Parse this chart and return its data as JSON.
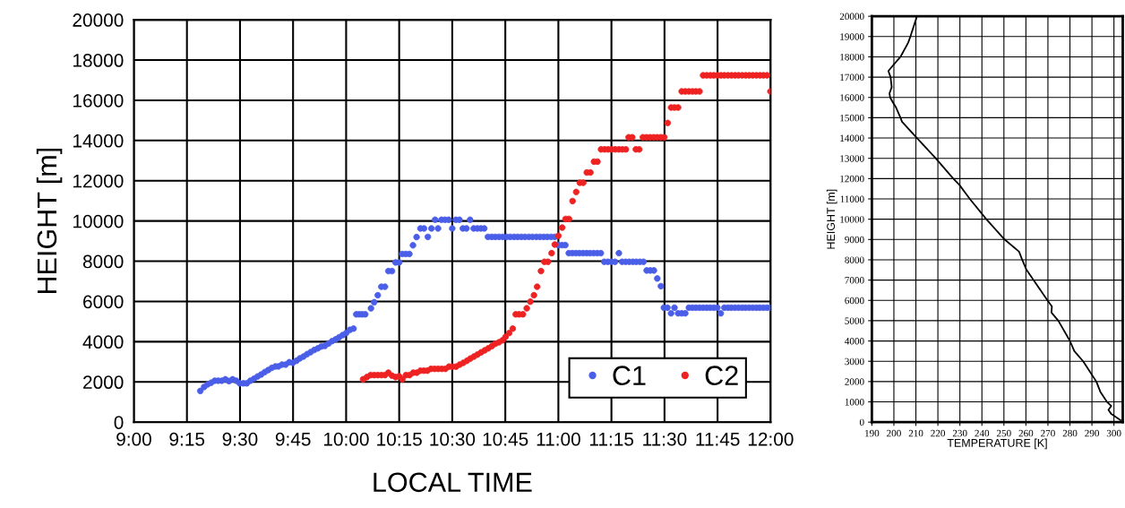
{
  "chart_data": [
    {
      "type": "scatter",
      "xlabel": "LOCAL TIME",
      "ylabel": "HEIGHT [m]",
      "xlim": [
        9,
        12
      ],
      "xticks": [
        {
          "value": 9,
          "label": "9:00"
        },
        {
          "value": 9.25,
          "label": "9:15"
        },
        {
          "value": 9.5,
          "label": "9:30"
        },
        {
          "value": 9.75,
          "label": "9:45"
        },
        {
          "value": 10,
          "label": "10:00"
        },
        {
          "value": 10.25,
          "label": "10:15"
        },
        {
          "value": 10.5,
          "label": "10:30"
        },
        {
          "value": 10.75,
          "label": "10:45"
        },
        {
          "value": 11,
          "label": "11:00"
        },
        {
          "value": 11.25,
          "label": "11:15"
        },
        {
          "value": 11.5,
          "label": "11:30"
        },
        {
          "value": 11.75,
          "label": "11:45"
        },
        {
          "value": 12,
          "label": "12:00"
        }
      ],
      "ylim": [
        0,
        20000
      ],
      "yticks": [
        0,
        2000,
        4000,
        6000,
        8000,
        10000,
        12000,
        14000,
        16000,
        18000,
        20000
      ],
      "grid": true,
      "legend": "bottom right",
      "marker": "circle",
      "series": [
        {
          "name": "C1",
          "color": "#4a5ee8",
          "x": [
            9.313,
            9.331,
            9.348,
            9.364,
            9.381,
            9.397,
            9.414,
            9.431,
            9.448,
            9.465,
            9.482,
            9.499,
            9.516,
            9.532,
            9.549,
            9.566,
            9.583,
            9.6,
            9.617,
            9.633,
            9.65,
            9.667,
            9.681,
            9.698,
            9.715,
            9.732,
            9.749,
            9.766,
            9.782,
            9.799,
            9.816,
            9.833,
            9.85,
            9.867,
            9.883,
            9.9,
            9.917,
            9.934,
            9.951,
            9.967,
            9.984,
            10.001,
            10.018,
            10.035,
            10.048,
            10.062,
            10.076,
            10.09,
            10.117,
            10.132,
            10.149,
            10.166,
            10.183,
            10.199,
            10.216,
            10.233,
            10.25,
            10.264,
            10.281,
            10.298,
            10.315,
            10.332,
            10.35,
            10.367,
            10.385,
            10.402,
            10.419,
            10.433,
            10.449,
            10.466,
            10.483,
            10.5,
            10.517,
            10.534,
            10.55,
            10.567,
            10.584,
            10.601,
            10.618,
            10.635,
            10.651,
            10.668,
            10.686,
            10.703,
            10.721,
            10.738,
            10.756,
            10.773,
            10.791,
            10.808,
            10.826,
            10.843,
            10.861,
            10.878,
            10.896,
            10.913,
            10.931,
            10.948,
            10.966,
            10.983,
            11.0,
            11.017,
            11.033,
            11.049,
            11.066,
            11.083,
            11.099,
            11.116,
            11.133,
            11.149,
            11.166,
            11.183,
            11.2,
            11.216,
            11.233,
            11.25,
            11.267,
            11.285,
            11.3,
            11.317,
            11.334,
            11.351,
            11.367,
            11.384,
            11.401,
            11.416,
            11.433,
            11.45,
            11.466,
            11.483,
            11.497,
            11.514,
            11.531,
            11.547,
            11.564,
            11.581,
            11.598,
            11.615,
            11.632,
            11.648,
            11.665,
            11.682,
            11.699,
            11.715,
            11.732,
            11.749,
            11.765,
            11.782,
            11.799,
            11.815,
            11.832,
            11.849,
            11.866,
            11.882,
            11.899,
            11.916,
            11.933,
            11.949,
            11.966,
            11.983,
            11.999
          ],
          "values": [
            1550,
            1750,
            1880,
            1960,
            2060,
            2060,
            2060,
            2130,
            2040,
            2130,
            2060,
            1930,
            1930,
            1930,
            2060,
            2160,
            2270,
            2370,
            2490,
            2590,
            2700,
            2770,
            2770,
            2860,
            2860,
            2980,
            2950,
            3050,
            3170,
            3260,
            3380,
            3480,
            3590,
            3670,
            3760,
            3790,
            3910,
            4030,
            4120,
            4220,
            4330,
            4440,
            4590,
            4650,
            5360,
            5360,
            5360,
            5360,
            5660,
            5960,
            6310,
            6730,
            6730,
            7510,
            7510,
            7940,
            7940,
            8360,
            8360,
            8360,
            8790,
            9200,
            9630,
            9630,
            9210,
            9630,
            10060,
            9630,
            10060,
            10060,
            10060,
            9630,
            10060,
            10060,
            9630,
            9630,
            10060,
            9630,
            9630,
            9630,
            9630,
            9210,
            9210,
            9210,
            9210,
            9210,
            9210,
            9210,
            9210,
            9210,
            9210,
            9210,
            9210,
            9210,
            9210,
            9210,
            9210,
            9210,
            9210,
            9210,
            8800,
            8800,
            8800,
            8400,
            8400,
            8400,
            8400,
            8400,
            8400,
            8400,
            8400,
            8400,
            8400,
            7970,
            7970,
            7970,
            7970,
            8400,
            7970,
            7970,
            7970,
            7970,
            7970,
            7970,
            7970,
            7540,
            7540,
            7540,
            7140,
            6760,
            5690,
            5690,
            5410,
            5690,
            5410,
            5410,
            5410,
            5690,
            5690,
            5690,
            5690,
            5690,
            5690,
            5690,
            5690,
            5690,
            5410,
            5690,
            5690,
            5690,
            5690,
            5690,
            5690,
            5690,
            5690,
            5690,
            5690,
            5690,
            5690,
            5690,
            5690
          ]
        },
        {
          "name": "C2",
          "color": "#ee2222",
          "x": [
            10.08,
            10.098,
            10.115,
            10.132,
            10.149,
            10.166,
            10.183,
            10.199,
            10.216,
            10.233,
            10.25,
            10.265,
            10.282,
            10.299,
            10.316,
            10.333,
            10.35,
            10.367,
            10.383,
            10.4,
            10.417,
            10.434,
            10.451,
            10.468,
            10.485,
            10.501,
            10.518,
            10.535,
            10.552,
            10.569,
            10.585,
            10.602,
            10.619,
            10.636,
            10.653,
            10.67,
            10.687,
            10.703,
            10.72,
            10.737,
            10.751,
            10.768,
            10.785,
            10.799,
            10.815,
            10.833,
            10.851,
            10.868,
            10.885,
            10.9,
            10.918,
            10.934,
            10.951,
            10.968,
            10.983,
            11.0,
            11.018,
            11.034,
            11.05,
            11.067,
            11.084,
            11.101,
            11.117,
            11.134,
            11.151,
            11.168,
            11.184,
            11.201,
            11.218,
            11.234,
            11.251,
            11.268,
            11.285,
            11.301,
            11.318,
            11.331,
            11.348,
            11.365,
            11.381,
            11.398,
            11.415,
            11.432,
            11.449,
            11.465,
            11.482,
            11.499,
            11.515,
            11.531,
            11.547,
            11.564,
            11.581,
            11.598,
            11.615,
            11.632,
            11.648,
            11.665,
            11.682,
            11.699,
            11.716,
            11.732,
            11.749,
            11.766,
            11.782,
            11.799,
            11.816,
            11.833,
            11.849,
            11.866,
            11.883,
            11.899,
            11.916,
            11.933,
            11.95,
            11.966,
            11.983,
            11.999
          ],
          "values": [
            2130,
            2240,
            2340,
            2340,
            2340,
            2340,
            2340,
            2460,
            2310,
            2240,
            2280,
            2130,
            2340,
            2340,
            2460,
            2460,
            2560,
            2560,
            2560,
            2650,
            2650,
            2650,
            2650,
            2650,
            2760,
            2760,
            2760,
            2860,
            2950,
            3050,
            3160,
            3260,
            3360,
            3470,
            3570,
            3670,
            3780,
            3900,
            3970,
            4070,
            4240,
            4430,
            4650,
            5360,
            5360,
            5360,
            5660,
            5990,
            6310,
            6730,
            7510,
            7970,
            7970,
            8400,
            8830,
            9260,
            9670,
            10100,
            10100,
            10990,
            11440,
            11900,
            11900,
            12410,
            12410,
            12950,
            12950,
            13560,
            13560,
            13560,
            13560,
            13560,
            13560,
            13560,
            13560,
            14160,
            14160,
            13560,
            13560,
            14160,
            14160,
            14160,
            14160,
            14160,
            14160,
            14160,
            14870,
            15640,
            15640,
            15640,
            16440,
            16440,
            16440,
            16440,
            16440,
            16440,
            17240,
            17240,
            17240,
            17240,
            17240,
            17240,
            17240,
            17240,
            17240,
            17240,
            17240,
            17240,
            17240,
            17240,
            17240,
            17240,
            17240,
            17240,
            17240,
            16440
          ]
        }
      ]
    },
    {
      "type": "line",
      "xlabel": "TEMPERATURE [K]",
      "ylabel": "HEIGHT [m]",
      "xlim": [
        190,
        304
      ],
      "xticks": [
        190,
        200,
        210,
        220,
        230,
        240,
        250,
        260,
        270,
        280,
        290,
        300
      ],
      "ylim": [
        0,
        20000
      ],
      "yticks": [
        0,
        1000,
        2000,
        3000,
        4000,
        5000,
        6000,
        7000,
        8000,
        9000,
        10000,
        11000,
        12000,
        13000,
        14000,
        15000,
        16000,
        17000,
        18000,
        19000,
        20000
      ],
      "grid": true,
      "line_style": "solid",
      "series": [
        {
          "color": "#000000",
          "x": [
            210.5,
            207.5,
            206.5,
            203,
            199,
            197.5,
            198.5,
            199,
            198,
            198.3,
            199.3,
            201,
            203,
            203.7,
            210.5,
            219,
            227,
            229.7,
            234.5,
            242,
            250.3,
            256.9,
            258.3,
            260.3,
            269.8,
            271.8,
            271.6,
            274.7,
            280,
            282,
            286,
            292,
            293.8,
            296.8,
            298.8,
            297.5,
            298.8,
            303
          ],
          "values": [
            20000,
            19000,
            18700,
            18000,
            17500,
            17300,
            17000,
            16500,
            16200,
            16000,
            15800,
            15500,
            15000,
            14800,
            14000,
            13000,
            12000,
            11700,
            11000,
            10000,
            9000,
            8400,
            8000,
            7500,
            6000,
            5700,
            5400,
            5000,
            4000,
            3500,
            3000,
            2000,
            1500,
            1000,
            800,
            600,
            400,
            100
          ]
        }
      ]
    }
  ]
}
